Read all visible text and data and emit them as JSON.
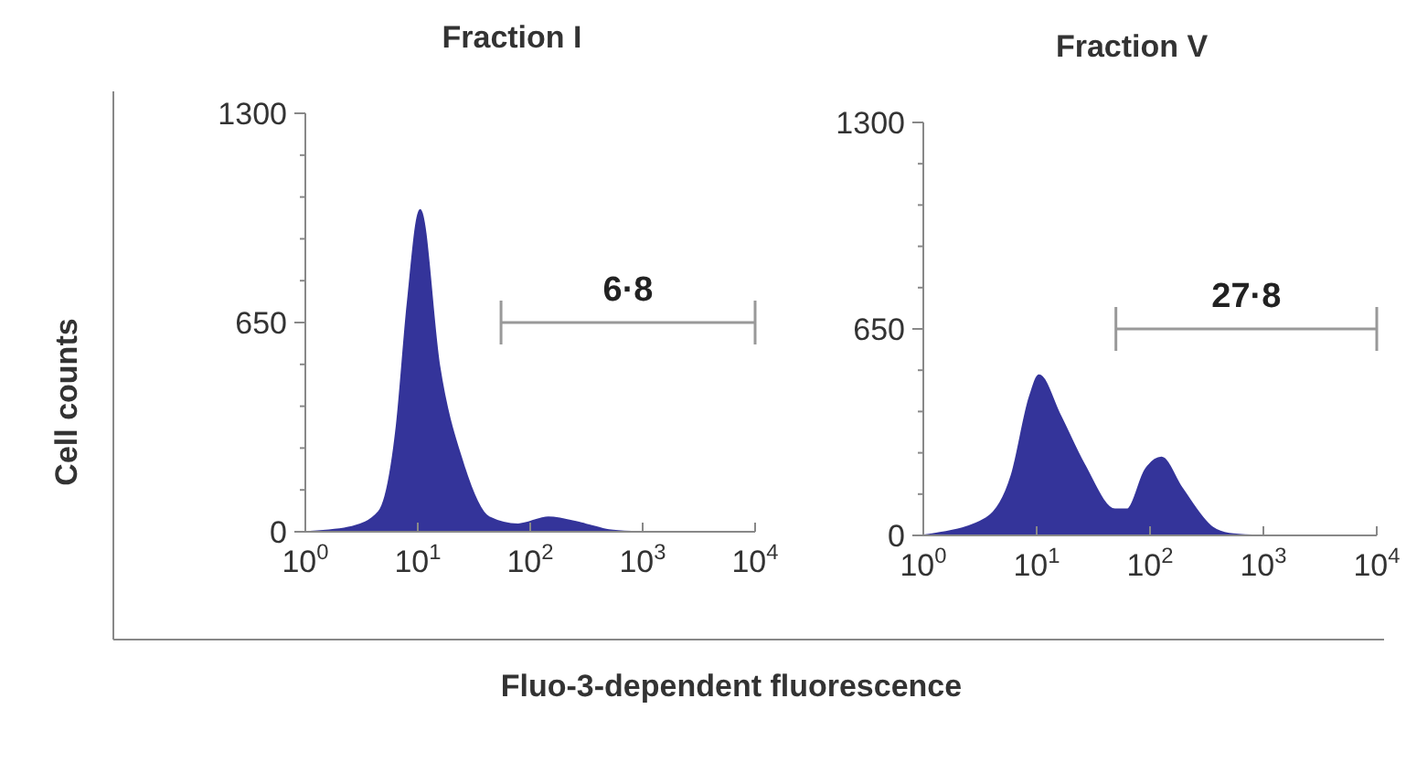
{
  "chart_data": [
    {
      "type": "area",
      "title": "Fraction I",
      "ylabel": "Cell counts",
      "xlabel": "Fluo-3-dependent fluorescence",
      "log": "x",
      "xlim": [
        1,
        10000
      ],
      "xticks": [
        {
          "value": 1,
          "label": "10$^{0}$"
        },
        {
          "value": 10,
          "label": "10$^{1}$"
        },
        {
          "value": 100,
          "label": "10$^{2}$"
        },
        {
          "value": 1000,
          "label": "10$^{3}$"
        },
        {
          "value": 10000,
          "label": "10$^{4}$"
        }
      ],
      "ylim": [
        0,
        1300
      ],
      "yticks": [
        0,
        {
          "value": 130,
          "label": null
        },
        {
          "value": 260,
          "label": null
        },
        {
          "value": 390,
          "label": null
        },
        {
          "value": 520,
          "label": null
        },
        650,
        {
          "value": 780,
          "label": null
        },
        {
          "value": 910,
          "label": null
        },
        {
          "value": 1040,
          "label": null
        },
        {
          "value": 1170,
          "label": null
        },
        1300
      ],
      "series": [
        {
          "color": "#34349a",
          "x": [
            1.1,
            2.6,
            4.5,
            6.5,
            8.1,
            10.5,
            15.5,
            25,
            43,
            78,
            145,
            310,
            500,
            800
          ],
          "values": [
            0,
            15,
            62,
            330,
            705,
            1000,
            517,
            216,
            45,
            23,
            45,
            23,
            5,
            0
          ]
        },
        {
          "type": "line",
          "color": "#999999",
          "x": [
            55,
            10000
          ],
          "values": [
            650,
            650
          ]
        }
      ],
      "annotations": [
        "6·8"
      ]
    },
    {
      "type": "area",
      "title": "Fraction V",
      "log": "x",
      "xlim": [
        1,
        10000
      ],
      "xticks": [
        {
          "value": 1,
          "label": "10$^{0}$"
        },
        {
          "value": 10,
          "label": "10$^{1}$"
        },
        {
          "value": 100,
          "label": "10$^{2}$"
        },
        {
          "value": 1000,
          "label": "10$^{3}$"
        },
        {
          "value": 10000,
          "label": "10$^{4}$"
        }
      ],
      "ylim": [
        0,
        1300
      ],
      "yticks": [
        0,
        {
          "value": 130,
          "label": null
        },
        {
          "value": 260,
          "label": null
        },
        {
          "value": 390,
          "label": null
        },
        {
          "value": 520,
          "label": null
        },
        650,
        {
          "value": 780,
          "label": null
        },
        {
          "value": 910,
          "label": null
        },
        {
          "value": 1040,
          "label": null
        },
        {
          "value": 1170,
          "label": null
        },
        1300
      ],
      "series": [
        {
          "color": "#34349a",
          "x": [
            1,
            1.26,
            3.6,
            6,
            8.7,
            10.5,
            16,
            26,
            49,
            63,
            91,
            126,
            190,
            355,
            500,
            800
          ],
          "values": [
            0,
            5,
            54,
            188,
            437,
            504,
            380,
            226,
            82,
            82,
            207,
            245,
            150,
            25,
            5,
            0
          ]
        },
        {
          "type": "line",
          "color": "#999999",
          "x": [
            50,
            10000
          ],
          "values": [
            650,
            650
          ]
        }
      ],
      "annotations": [
        "27·8"
      ]
    }
  ]
}
